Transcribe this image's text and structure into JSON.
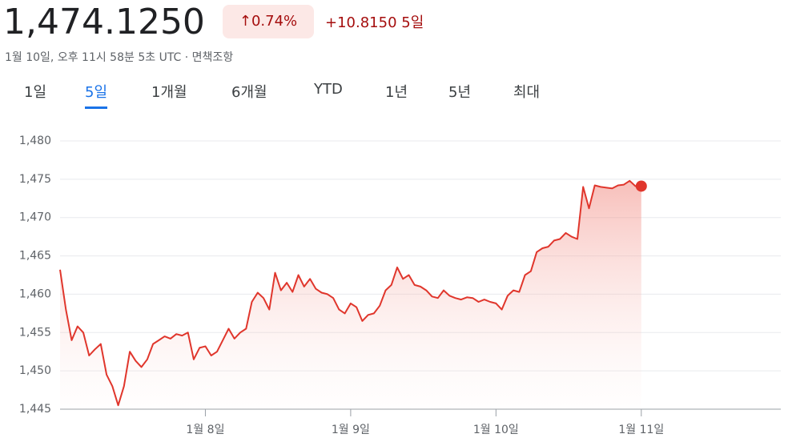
{
  "header": {
    "price": "1,474.1250",
    "change_percent": "0.74%",
    "change": "+10.8150",
    "period": "5일",
    "timestamp": "1월 10일, 오후 11시 58분 5초 UTC · 면책조항"
  },
  "tabs": {
    "items": [
      "1일",
      "5일",
      "1개월",
      "6개월",
      "YTD",
      "1년",
      "5년",
      "최대"
    ],
    "selected": 1
  },
  "chart_data": {
    "type": "line",
    "color": "#e0362c",
    "values": [
      1463.2,
      1458,
      1454,
      1455.8,
      1455,
      1452,
      1452.8,
      1453.5,
      1449.5,
      1448,
      1445.5,
      1448,
      1452.5,
      1451.3,
      1450.5,
      1451.5,
      1453.5,
      1454,
      1454.5,
      1454.2,
      1454.8,
      1454.6,
      1455,
      1451.5,
      1453,
      1453.2,
      1452,
      1452.5,
      1454,
      1455.5,
      1454.2,
      1455,
      1455.5,
      1459,
      1460.2,
      1459.5,
      1458,
      1462.8,
      1460.5,
      1461.5,
      1460.3,
      1462.5,
      1461,
      1462,
      1460.7,
      1460.2,
      1460,
      1459.5,
      1458,
      1457.5,
      1458.8,
      1458.3,
      1456.5,
      1457.3,
      1457.5,
      1458.5,
      1460.5,
      1461.2,
      1463.5,
      1462,
      1462.5,
      1461.2,
      1461,
      1460.5,
      1459.7,
      1459.5,
      1460.5,
      1459.8,
      1459.5,
      1459.3,
      1459.6,
      1459.5,
      1459,
      1459.3,
      1459,
      1458.8,
      1458,
      1459.8,
      1460.5,
      1460.3,
      1462.5,
      1463,
      1465.5,
      1466,
      1466.2,
      1467,
      1467.2,
      1468,
      1467.5,
      1467.2,
      1474,
      1471.2,
      1474.2,
      1474,
      1473.9,
      1473.8,
      1474.2,
      1474.3,
      1474.8,
      1474.1,
      1474.1
    ],
    "xlim": [
      0,
      124
    ],
    "xticks": [
      {
        "value": 25,
        "label": "1월 8일"
      },
      {
        "value": 50,
        "label": "1월 9일"
      },
      {
        "value": 75,
        "label": "1월 10일"
      },
      {
        "value": 100,
        "label": "1월 11일"
      }
    ],
    "ylim": [
      1445,
      1480
    ],
    "yticks": [
      {
        "value": 1445,
        "label": "1,445"
      },
      {
        "value": 1450,
        "label": "1,450"
      },
      {
        "value": 1455,
        "label": "1,455"
      },
      {
        "value": 1460,
        "label": "1,460"
      },
      {
        "value": 1465,
        "label": "1,465"
      },
      {
        "value": 1470,
        "label": "1,470"
      },
      {
        "value": 1475,
        "label": "1,475"
      },
      {
        "value": 1480,
        "label": "1,480"
      }
    ],
    "grid": true
  }
}
